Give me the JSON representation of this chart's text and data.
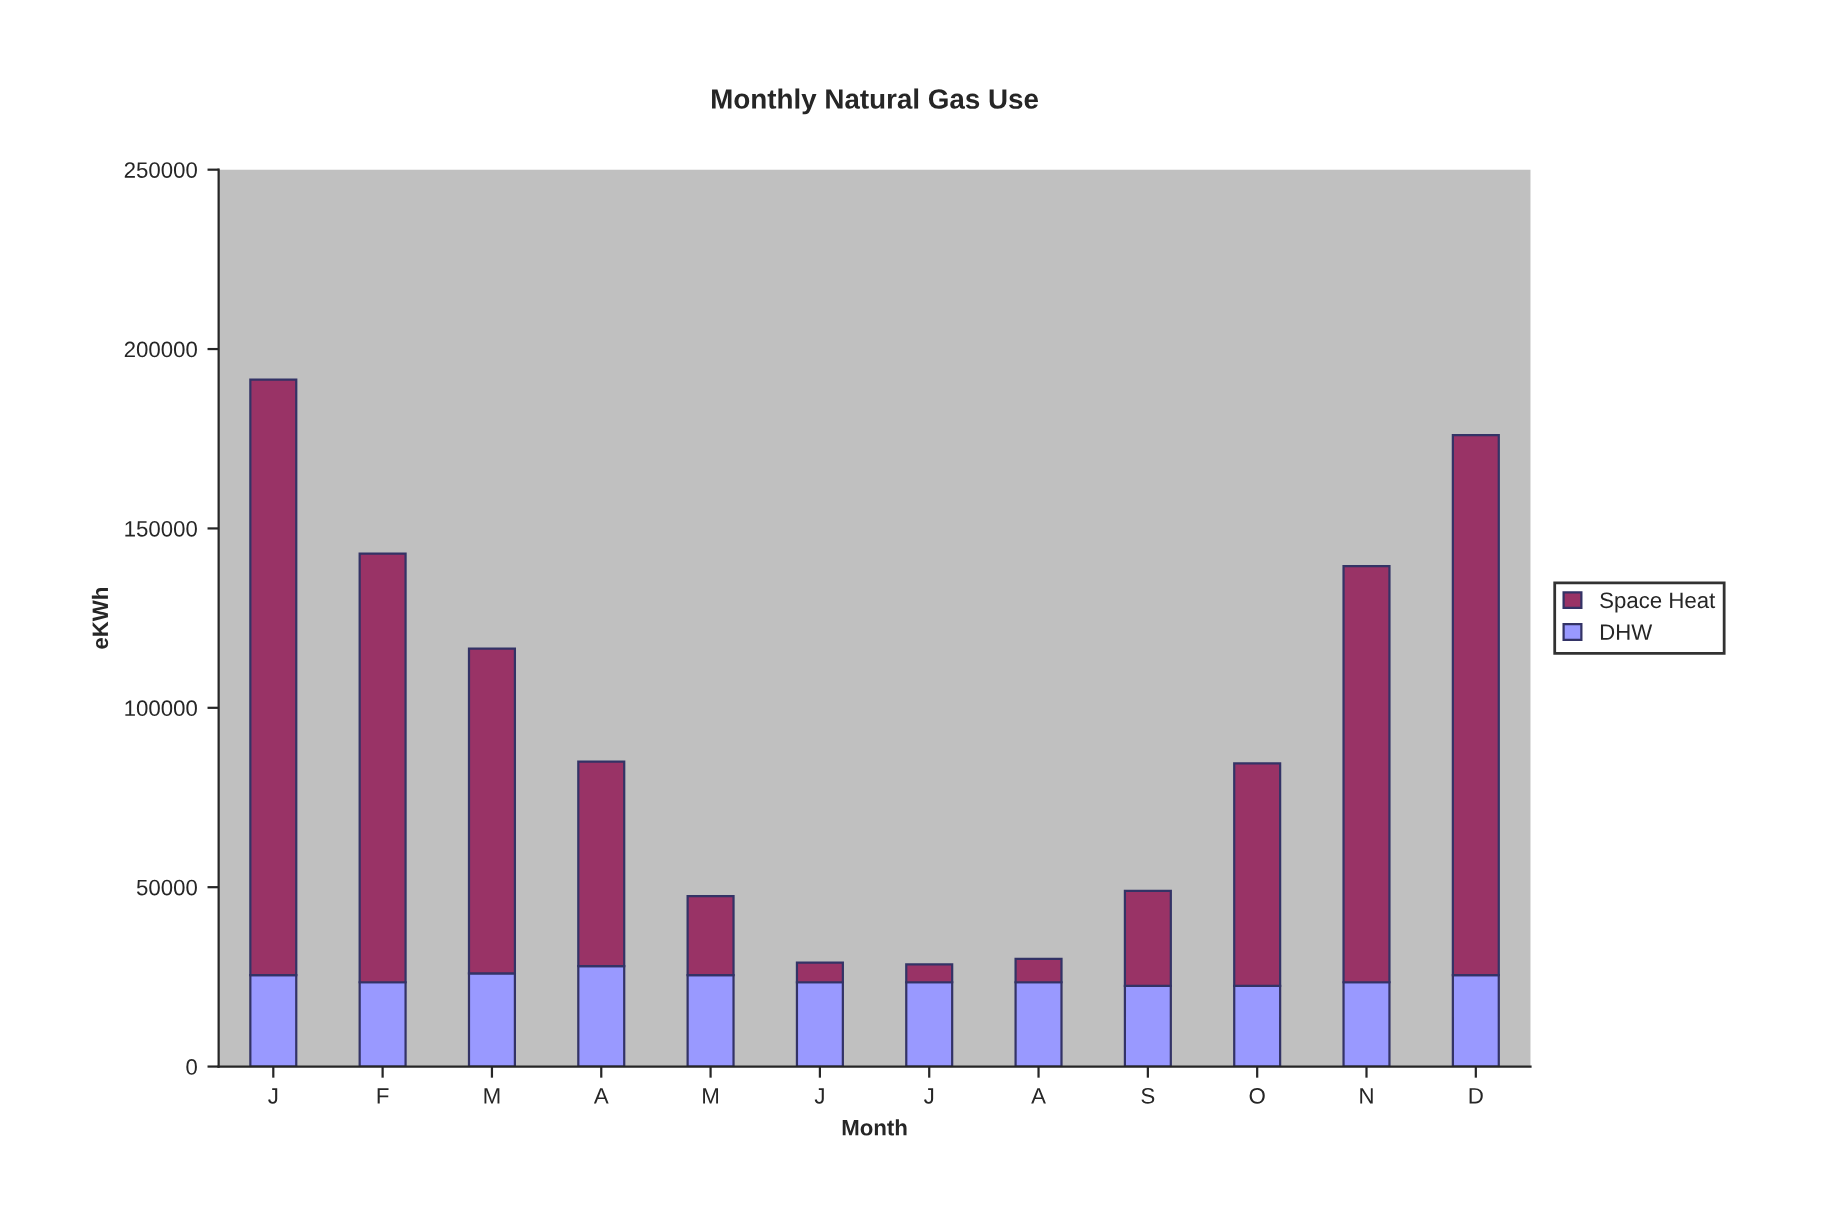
{
  "chart_data": {
    "type": "bar",
    "title": "Monthly Natural Gas Use",
    "xlabel": "Month",
    "ylabel": "eKWh",
    "categories": [
      "J",
      "F",
      "M",
      "A",
      "M",
      "J",
      "J",
      "A",
      "S",
      "O",
      "N",
      "D"
    ],
    "stacked": true,
    "series": [
      {
        "name": "DHW",
        "color": "#9999ff",
        "values": [
          25500,
          23500,
          26000,
          28000,
          25500,
          23500,
          23500,
          23500,
          22500,
          22500,
          23500,
          25500
        ]
      },
      {
        "name": "Space Heat",
        "color": "#993366",
        "values": [
          166000,
          119500,
          90500,
          57000,
          22000,
          5500,
          5000,
          6500,
          26500,
          62000,
          116000,
          150500
        ]
      }
    ],
    "ylim": [
      0,
      250000
    ],
    "yticks": [
      0,
      50000,
      100000,
      150000,
      200000,
      250000
    ],
    "grid": false,
    "legend": "right"
  }
}
